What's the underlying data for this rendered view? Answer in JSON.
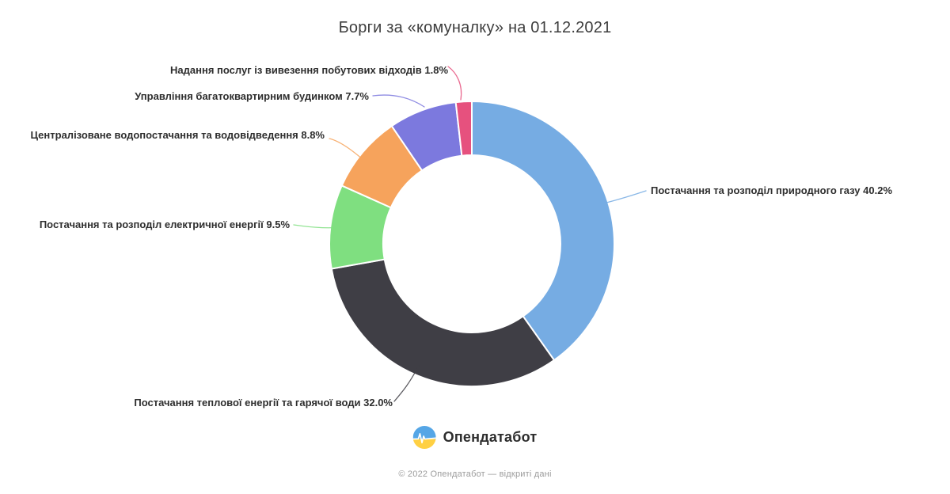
{
  "title": "Борги за «комуналку» на 01.12.2021",
  "chart_data": {
    "type": "pie",
    "subtype": "donut",
    "title": "Борги за «комуналку» на 01.12.2021",
    "unit": "%",
    "direction": "clockwise",
    "start_angle_deg": 0,
    "legend_position": "none",
    "labels_style": "outside-with-leader-lines",
    "slices": [
      {
        "label": "Постачання та розподіл природного газу",
        "value": 40.2,
        "color": "#76ace3"
      },
      {
        "label": "Постачання теплової енергії та гарячої води",
        "value": 32.0,
        "color": "#3f3e45"
      },
      {
        "label": "Постачання та розподіл електричної енергії",
        "value": 9.5,
        "color": "#7fdf80"
      },
      {
        "label": "Централізоване водопостачання та водовідведення",
        "value": 8.8,
        "color": "#f6a35c"
      },
      {
        "label": "Управління багатоквартирним будинком",
        "value": 7.7,
        "color": "#7c79de"
      },
      {
        "label": "Надання послуг із вивезення побутових відходів",
        "value": 1.8,
        "color": "#e6517e"
      }
    ],
    "display_labels": [
      "Постачання та розподіл природного газу 40.2%",
      "Постачання теплової енергії та гарячої води 32.0%",
      "Постачання та розподіл електричної енергії 9.5%",
      "Централізоване водопостачання та водовідведення 8.8%",
      "Управління багатоквартирним будинком 7.7%",
      "Надання послуг із вивезення побутових відходів 1.8%"
    ]
  },
  "footer": {
    "brand": "Опендатабот",
    "copyright": "© 2022 Опендатабот — відкриті дані"
  },
  "colors": {
    "background": "#ffffff",
    "title_text": "#3d3d3d",
    "label_text": "#2e2e2e",
    "copyright_text": "#9b9b9b",
    "logo_blue": "#55a6e6",
    "logo_yellow": "#ffd043"
  }
}
